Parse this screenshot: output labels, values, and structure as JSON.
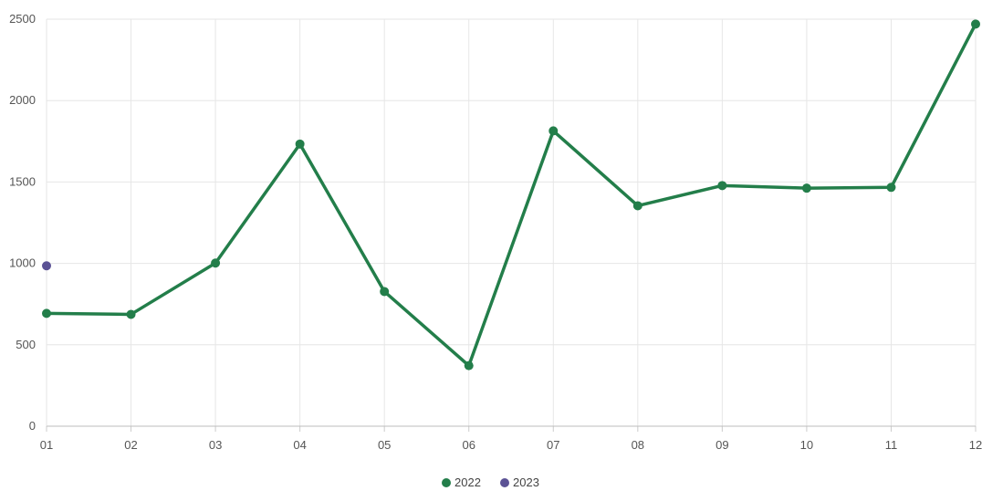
{
  "chart_data": {
    "type": "line",
    "categories": [
      "01",
      "02",
      "03",
      "04",
      "05",
      "06",
      "07",
      "08",
      "09",
      "10",
      "11",
      "12"
    ],
    "series": [
      {
        "name": "2022",
        "color": "#237e4a",
        "values": [
          693,
          687,
          1002,
          1733,
          827,
          372,
          1814,
          1354,
          1478,
          1462,
          1467,
          2470
        ]
      },
      {
        "name": "2023",
        "color": "#5b5295",
        "values": [
          985,
          null,
          null,
          null,
          null,
          null,
          null,
          null,
          null,
          null,
          null,
          null
        ]
      }
    ],
    "yticks": [
      0,
      500,
      1000,
      1500,
      2000,
      2500
    ],
    "ylim": [
      0,
      2500
    ],
    "grid": true,
    "legend_position": "bottom-center",
    "title": "",
    "xlabel": "",
    "ylabel": ""
  }
}
